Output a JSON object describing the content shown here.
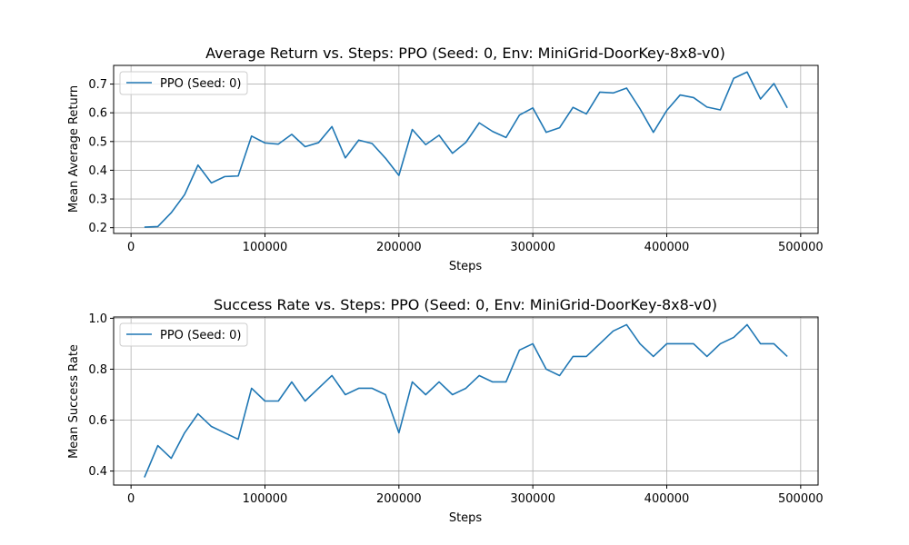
{
  "chart_data": [
    {
      "type": "line",
      "title": "Average Return vs. Steps: PPO (Seed: 0, Env: MiniGrid-DoorKey-8x8-v0)",
      "xlabel": "Steps",
      "ylabel": "Mean Average Return",
      "xlim": [
        -13000,
        513000
      ],
      "ylim": [
        0.18,
        0.765
      ],
      "xticks": [
        0,
        100000,
        200000,
        300000,
        400000,
        500000
      ],
      "yticks": [
        0.2,
        0.3,
        0.4,
        0.5,
        0.6,
        0.7
      ],
      "ytick_labels": [
        "0.2",
        "0.3",
        "0.4",
        "0.5",
        "0.6",
        "0.7"
      ],
      "grid": true,
      "legend_position": "upper-left",
      "series": [
        {
          "name": "PPO (Seed: 0)",
          "color": "#1f77b4",
          "x": [
            10000,
            20000,
            30000,
            40000,
            50000,
            60000,
            70000,
            80000,
            90000,
            100000,
            110000,
            120000,
            130000,
            140000,
            150000,
            160000,
            170000,
            180000,
            190000,
            200000,
            210000,
            220000,
            230000,
            240000,
            250000,
            260000,
            270000,
            280000,
            290000,
            300000,
            310000,
            320000,
            330000,
            340000,
            350000,
            360000,
            370000,
            380000,
            390000,
            400000,
            410000,
            420000,
            430000,
            440000,
            450000,
            460000,
            470000,
            480000,
            490000
          ],
          "values": [
            0.202,
            0.204,
            0.252,
            0.315,
            0.418,
            0.356,
            0.378,
            0.38,
            0.519,
            0.495,
            0.491,
            0.525,
            0.482,
            0.496,
            0.552,
            0.443,
            0.505,
            0.493,
            0.442,
            0.382,
            0.542,
            0.489,
            0.522,
            0.459,
            0.497,
            0.565,
            0.535,
            0.514,
            0.592,
            0.617,
            0.532,
            0.548,
            0.619,
            0.596,
            0.672,
            0.669,
            0.686,
            0.614,
            0.532,
            0.608,
            0.662,
            0.653,
            0.62,
            0.61,
            0.72,
            0.742,
            0.648,
            0.702,
            0.617
          ]
        }
      ]
    },
    {
      "type": "line",
      "title": "Success Rate vs. Steps: PPO (Seed: 0, Env: MiniGrid-DoorKey-8x8-v0)",
      "xlabel": "Steps",
      "ylabel": "Mean Success Rate",
      "xlim": [
        -13000,
        513000
      ],
      "ylim": [
        0.345,
        1.005
      ],
      "xticks": [
        0,
        100000,
        200000,
        300000,
        400000,
        500000
      ],
      "yticks": [
        0.4,
        0.6,
        0.8,
        1.0
      ],
      "ytick_labels": [
        "0.4",
        "0.6",
        "0.8",
        "1.0"
      ],
      "grid": true,
      "legend_position": "upper-left",
      "series": [
        {
          "name": "PPO (Seed: 0)",
          "color": "#1f77b4",
          "x": [
            10000,
            20000,
            30000,
            40000,
            50000,
            60000,
            70000,
            80000,
            90000,
            100000,
            110000,
            120000,
            130000,
            140000,
            150000,
            160000,
            170000,
            180000,
            190000,
            200000,
            210000,
            220000,
            230000,
            240000,
            250000,
            260000,
            270000,
            280000,
            290000,
            300000,
            310000,
            320000,
            330000,
            340000,
            350000,
            360000,
            370000,
            380000,
            390000,
            400000,
            410000,
            420000,
            430000,
            440000,
            450000,
            460000,
            470000,
            480000,
            490000
          ],
          "values": [
            0.375,
            0.5,
            0.45,
            0.55,
            0.625,
            0.575,
            0.55,
            0.525,
            0.725,
            0.675,
            0.675,
            0.75,
            0.675,
            0.725,
            0.775,
            0.7,
            0.725,
            0.725,
            0.7,
            0.55,
            0.75,
            0.7,
            0.75,
            0.7,
            0.725,
            0.775,
            0.75,
            0.75,
            0.875,
            0.9,
            0.8,
            0.775,
            0.85,
            0.85,
            0.9,
            0.95,
            0.975,
            0.9,
            0.85,
            0.9,
            0.9,
            0.9,
            0.85,
            0.9,
            0.925,
            0.975,
            0.9,
            0.9,
            0.85
          ]
        }
      ]
    }
  ]
}
